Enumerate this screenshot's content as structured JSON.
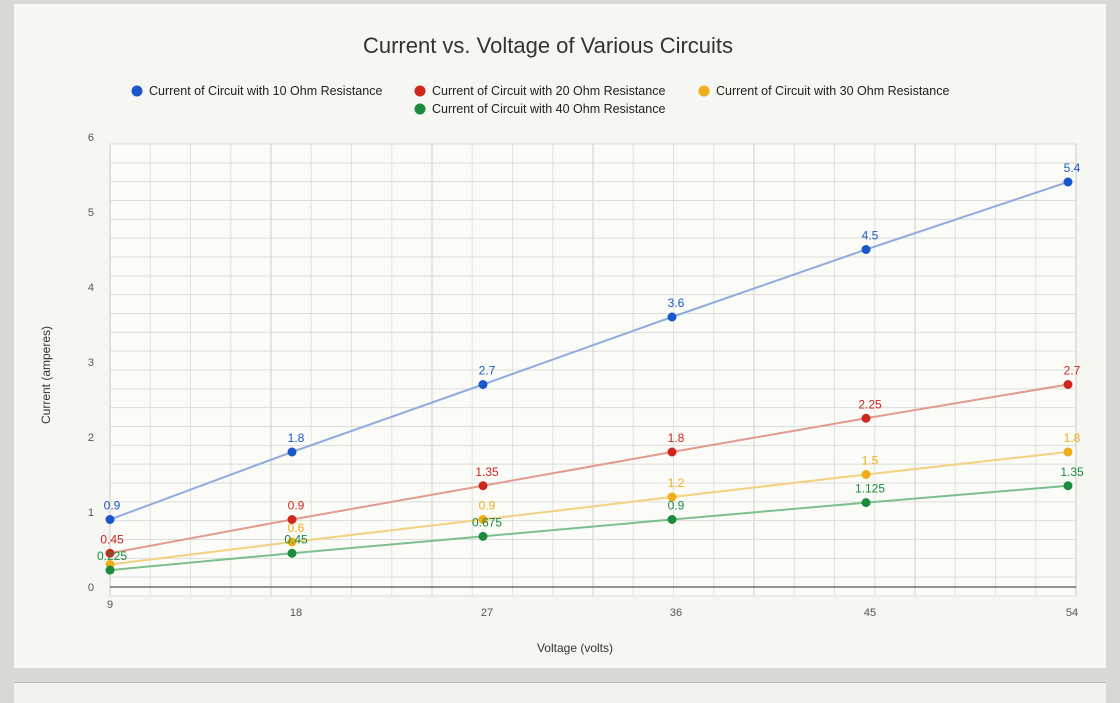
{
  "chart_data": {
    "type": "line",
    "title": "Current vs. Voltage of Various Circuits",
    "xlabel": "Voltage (volts)",
    "ylabel": "Current (amperes)",
    "x": [
      9,
      18,
      27,
      36,
      45,
      54
    ],
    "x_tick_labels": [
      "9",
      "18",
      "27",
      "36",
      "45",
      "54"
    ],
    "y_ticks": [
      "0",
      "1",
      "2",
      "3",
      "4",
      "5",
      "6"
    ],
    "ylim": [
      0,
      6
    ],
    "grid": true,
    "legend_position": "top",
    "series": [
      {
        "name": "Current of Circuit with 10 Ohm Resistance",
        "color": "#1a56cc",
        "line_color": "#8eadde",
        "values": [
          0.9,
          1.8,
          2.7,
          3.6,
          4.5,
          5.4
        ],
        "labels": [
          "0.9",
          "1.8",
          "2.7",
          "3.6",
          "4.5",
          "5.4"
        ]
      },
      {
        "name": "Current of Circuit with 20 Ohm Resistance",
        "color": "#d0261f",
        "line_color": "#e29a90",
        "values": [
          0.45,
          0.9,
          1.35,
          1.8,
          2.25,
          2.7
        ],
        "labels": [
          "0.45",
          "0.9",
          "1.35",
          "1.8",
          "2.25",
          "2.7"
        ]
      },
      {
        "name": "Current of Circuit with 30 Ohm Resistance",
        "color": "#f0ad17",
        "line_color": "#f2d27e",
        "values": [
          0.3,
          0.6,
          0.9,
          1.2,
          1.5,
          1.8
        ],
        "labels": [
          "",
          "0.6",
          "0.9",
          "1.2",
          "1.5",
          "1.8"
        ]
      },
      {
        "name": "Current of Circuit with 40 Ohm Resistance",
        "color": "#1a8a3c",
        "line_color": "#7cbf8c",
        "values": [
          0.225,
          0.45,
          0.675,
          0.9,
          1.125,
          1.35
        ],
        "labels": [
          "0.225",
          "0.45",
          "0.675",
          "0.9",
          "1.125",
          "1.35"
        ]
      }
    ]
  }
}
